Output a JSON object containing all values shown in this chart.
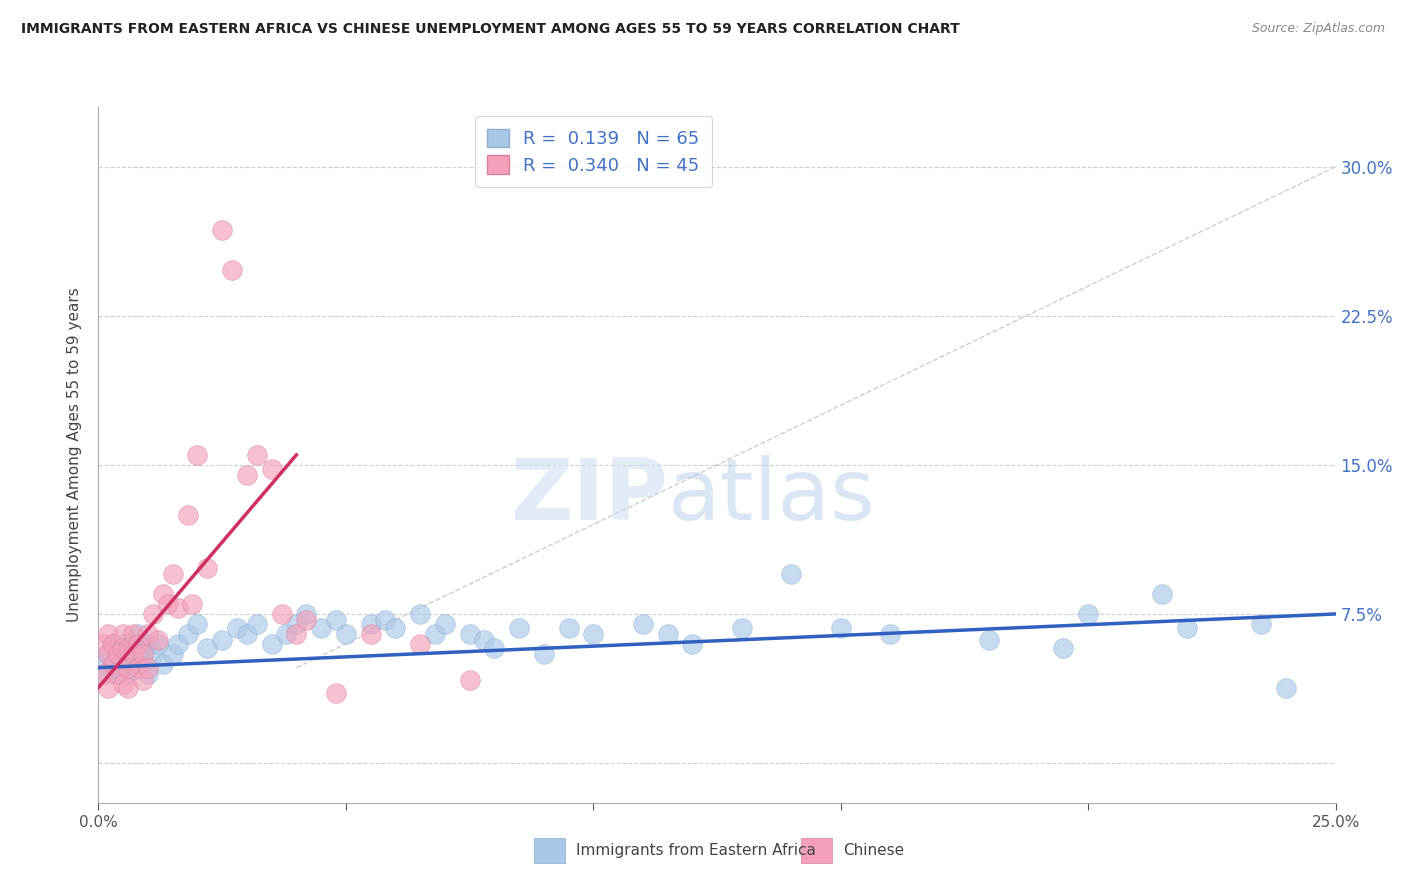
{
  "title": "IMMIGRANTS FROM EASTERN AFRICA VS CHINESE UNEMPLOYMENT AMONG AGES 55 TO 59 YEARS CORRELATION CHART",
  "source": "Source: ZipAtlas.com",
  "ylabel": "Unemployment Among Ages 55 to 59 years",
  "xlim": [
    0.0,
    0.25
  ],
  "ylim": [
    -0.02,
    0.33
  ],
  "xticks": [
    0.0,
    0.05,
    0.1,
    0.15,
    0.2,
    0.25
  ],
  "xticklabels": [
    "0.0%",
    "",
    "",
    "",
    "",
    "25.0%"
  ],
  "yticks_right": [
    0.0,
    0.075,
    0.15,
    0.225,
    0.3
  ],
  "yticklabels_right": [
    "",
    "7.5%",
    "15.0%",
    "22.5%",
    "30.0%"
  ],
  "blue_color": "#a8c8e8",
  "pink_color": "#f4a0b8",
  "blue_line_color": "#3060c0",
  "pink_line_color": "#d03060",
  "watermark_zip": "ZIP",
  "watermark_atlas": "atlas",
  "background_color": "#ffffff",
  "grid_color": "#d0d0d0",
  "blue_scatter_x": [
    0.001,
    0.002,
    0.002,
    0.003,
    0.003,
    0.004,
    0.004,
    0.005,
    0.005,
    0.006,
    0.006,
    0.007,
    0.007,
    0.008,
    0.008,
    0.009,
    0.009,
    0.01,
    0.01,
    0.011,
    0.012,
    0.013,
    0.015,
    0.016,
    0.018,
    0.02,
    0.022,
    0.025,
    0.028,
    0.03,
    0.032,
    0.035,
    0.038,
    0.04,
    0.042,
    0.045,
    0.048,
    0.05,
    0.055,
    0.058,
    0.06,
    0.065,
    0.068,
    0.07,
    0.075,
    0.078,
    0.08,
    0.085,
    0.09,
    0.095,
    0.1,
    0.11,
    0.115,
    0.12,
    0.13,
    0.14,
    0.15,
    0.16,
    0.18,
    0.195,
    0.2,
    0.215,
    0.22,
    0.235,
    0.24
  ],
  "blue_scatter_y": [
    0.05,
    0.055,
    0.045,
    0.05,
    0.06,
    0.045,
    0.055,
    0.05,
    0.06,
    0.045,
    0.055,
    0.05,
    0.06,
    0.055,
    0.065,
    0.05,
    0.055,
    0.06,
    0.045,
    0.055,
    0.06,
    0.05,
    0.055,
    0.06,
    0.065,
    0.07,
    0.058,
    0.062,
    0.068,
    0.065,
    0.07,
    0.06,
    0.065,
    0.07,
    0.075,
    0.068,
    0.072,
    0.065,
    0.07,
    0.072,
    0.068,
    0.075,
    0.065,
    0.07,
    0.065,
    0.062,
    0.058,
    0.068,
    0.055,
    0.068,
    0.065,
    0.07,
    0.065,
    0.06,
    0.068,
    0.095,
    0.068,
    0.065,
    0.062,
    0.058,
    0.075,
    0.085,
    0.068,
    0.07,
    0.038
  ],
  "pink_scatter_x": [
    0.001,
    0.001,
    0.002,
    0.002,
    0.002,
    0.003,
    0.003,
    0.004,
    0.004,
    0.005,
    0.005,
    0.005,
    0.006,
    0.006,
    0.006,
    0.007,
    0.007,
    0.008,
    0.008,
    0.009,
    0.009,
    0.01,
    0.01,
    0.011,
    0.012,
    0.013,
    0.014,
    0.015,
    0.016,
    0.018,
    0.019,
    0.02,
    0.022,
    0.025,
    0.027,
    0.03,
    0.032,
    0.035,
    0.037,
    0.04,
    0.042,
    0.048,
    0.055,
    0.065,
    0.075
  ],
  "pink_scatter_y": [
    0.045,
    0.06,
    0.055,
    0.038,
    0.065,
    0.05,
    0.06,
    0.045,
    0.055,
    0.058,
    0.04,
    0.065,
    0.048,
    0.058,
    0.038,
    0.055,
    0.065,
    0.06,
    0.048,
    0.055,
    0.042,
    0.065,
    0.048,
    0.075,
    0.062,
    0.085,
    0.08,
    0.095,
    0.078,
    0.125,
    0.08,
    0.155,
    0.098,
    0.268,
    0.248,
    0.145,
    0.155,
    0.148,
    0.075,
    0.065,
    0.072,
    0.035,
    0.065,
    0.06,
    0.042
  ],
  "blue_trend_x": [
    0.0,
    0.25
  ],
  "blue_trend_y": [
    0.048,
    0.075
  ],
  "pink_trend_x": [
    0.0,
    0.04
  ],
  "pink_trend_y": [
    0.038,
    0.155
  ],
  "diag_line_x": [
    0.04,
    0.25
  ],
  "diag_line_y": [
    0.048,
    0.3
  ],
  "legend_blue_label": "R =  0.139   N = 65",
  "legend_pink_label": "R =  0.340   N = 45"
}
